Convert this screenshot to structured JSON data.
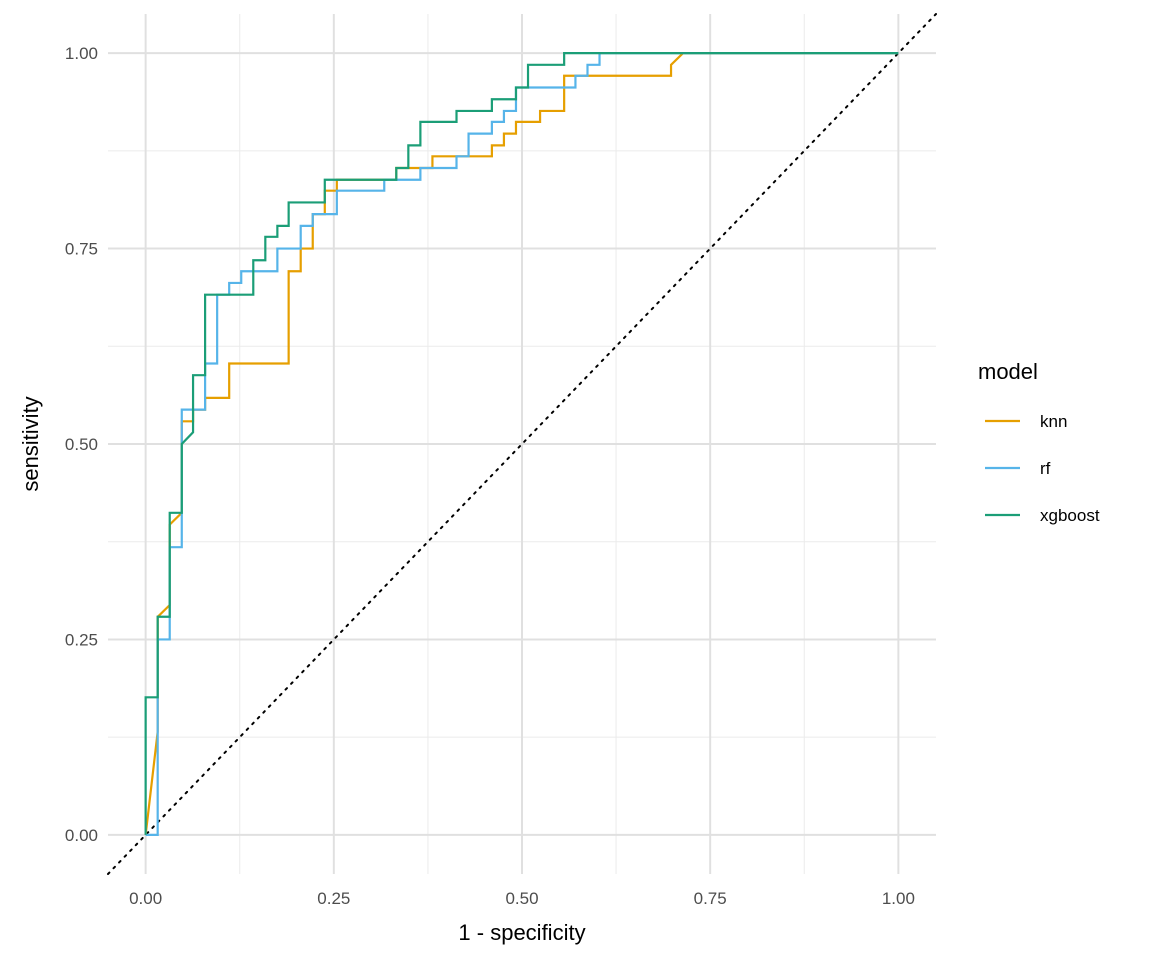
{
  "chart_data": {
    "type": "line",
    "title": "",
    "xlabel": "1 - specificity",
    "ylabel": "sensitivity",
    "xlim": [
      -0.05,
      1.05
    ],
    "ylim": [
      -0.05,
      1.05
    ],
    "x_ticks": [
      "0.00",
      "0.25",
      "0.50",
      "0.75",
      "1.00"
    ],
    "y_ticks": [
      "0.00",
      "0.25",
      "0.50",
      "0.75",
      "1.00"
    ],
    "x_tick_values": [
      0,
      0.25,
      0.5,
      0.75,
      1.0
    ],
    "y_tick_values": [
      0,
      0.25,
      0.5,
      0.75,
      1.0
    ],
    "grid": true,
    "legend_title": "model",
    "legend_position": "right",
    "reference_line": {
      "style": "dotted",
      "from": [
        -0.05,
        -0.05
      ],
      "to": [
        1.05,
        1.05
      ],
      "color": "#000000"
    },
    "series": [
      {
        "name": "knn",
        "color": "#E69F00",
        "x": [
          0,
          0.016,
          0.016,
          0.032,
          0.032,
          0.048,
          0.048,
          0.063,
          0.063,
          0.079,
          0.079,
          0.111,
          0.111,
          0.19,
          0.19,
          0.206,
          0.206,
          0.222,
          0.222,
          0.238,
          0.238,
          0.254,
          0.254,
          0.333,
          0.333,
          0.365,
          0.365,
          0.381,
          0.381,
          0.46,
          0.46,
          0.476,
          0.476,
          0.492,
          0.492,
          0.524,
          0.524,
          0.556,
          0.556,
          0.698,
          0.698,
          0.714,
          1.0
        ],
        "y": [
          0,
          0.132,
          0.279,
          0.294,
          0.397,
          0.412,
          0.529,
          0.529,
          0.544,
          0.544,
          0.559,
          0.559,
          0.603,
          0.603,
          0.721,
          0.721,
          0.75,
          0.75,
          0.794,
          0.794,
          0.824,
          0.824,
          0.838,
          0.838,
          0.853,
          0.853,
          0.853,
          0.853,
          0.868,
          0.868,
          0.882,
          0.882,
          0.897,
          0.897,
          0.912,
          0.912,
          0.926,
          0.926,
          0.971,
          0.971,
          0.985,
          1.0,
          1.0
        ]
      },
      {
        "name": "rf",
        "color": "#56B4E9",
        "x": [
          0,
          0.016,
          0.016,
          0.032,
          0.032,
          0.048,
          0.048,
          0.079,
          0.079,
          0.095,
          0.095,
          0.111,
          0.111,
          0.127,
          0.127,
          0.175,
          0.175,
          0.206,
          0.206,
          0.222,
          0.222,
          0.254,
          0.254,
          0.317,
          0.317,
          0.365,
          0.365,
          0.413,
          0.413,
          0.429,
          0.429,
          0.46,
          0.46,
          0.476,
          0.476,
          0.492,
          0.492,
          0.571,
          0.571,
          0.587,
          0.587,
          0.603,
          0.603,
          1.0
        ],
        "y": [
          0,
          0,
          0.25,
          0.25,
          0.368,
          0.368,
          0.544,
          0.544,
          0.603,
          0.603,
          0.691,
          0.691,
          0.706,
          0.706,
          0.721,
          0.721,
          0.75,
          0.75,
          0.779,
          0.779,
          0.794,
          0.794,
          0.824,
          0.824,
          0.838,
          0.838,
          0.853,
          0.853,
          0.868,
          0.868,
          0.897,
          0.897,
          0.912,
          0.912,
          0.926,
          0.926,
          0.956,
          0.956,
          0.971,
          0.971,
          0.985,
          0.985,
          1.0,
          1.0
        ]
      },
      {
        "name": "xgboost",
        "color": "#1B9E77",
        "x": [
          0,
          0,
          0.016,
          0.016,
          0.032,
          0.032,
          0.048,
          0.048,
          0.063,
          0.063,
          0.079,
          0.079,
          0.143,
          0.143,
          0.159,
          0.159,
          0.175,
          0.175,
          0.19,
          0.19,
          0.238,
          0.238,
          0.333,
          0.333,
          0.349,
          0.349,
          0.365,
          0.365,
          0.413,
          0.413,
          0.46,
          0.46,
          0.492,
          0.492,
          0.508,
          0.508,
          0.556,
          0.556,
          1.0
        ],
        "y": [
          0,
          0.176,
          0.176,
          0.279,
          0.279,
          0.412,
          0.412,
          0.5,
          0.515,
          0.588,
          0.588,
          0.691,
          0.691,
          0.735,
          0.735,
          0.765,
          0.765,
          0.779,
          0.779,
          0.809,
          0.809,
          0.838,
          0.838,
          0.853,
          0.853,
          0.882,
          0.882,
          0.912,
          0.912,
          0.926,
          0.926,
          0.941,
          0.941,
          0.956,
          0.956,
          0.985,
          0.985,
          1.0,
          1.0
        ]
      }
    ]
  }
}
